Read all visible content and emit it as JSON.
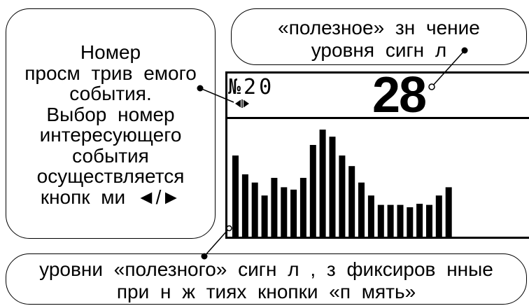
{
  "colors": {
    "ink": "#000000",
    "paper": "#ffffff"
  },
  "callouts": {
    "event_number": {
      "lines": [
        "Номер",
        "просм трив емого",
        "события.",
        "Выбор номер",
        "интересующего",
        "события",
        "осуществляется",
        "кнопк ми ◄/►"
      ]
    },
    "useful_value": {
      "lines": [
        "«полезное» зн чение",
        "уровня сигн л"
      ]
    },
    "stored_levels": {
      "lines": [
        "уровни «полезного» сигн л , з фиксиров нные",
        "при н ж тиях кнопки «п мять»"
      ]
    }
  },
  "screen": {
    "event_label": "№20",
    "nav_icon": "left-right-arrows-icon",
    "signal_value": "28"
  },
  "chart_data": {
    "type": "bar",
    "values": [
      69,
      53,
      46,
      35,
      50,
      42,
      40,
      50,
      78,
      91,
      85,
      69,
      60,
      46,
      35,
      27,
      27,
      27,
      25,
      28,
      27,
      35,
      42
    ],
    "ylim": [
      0,
      100
    ],
    "grid": false,
    "legend": "none"
  }
}
